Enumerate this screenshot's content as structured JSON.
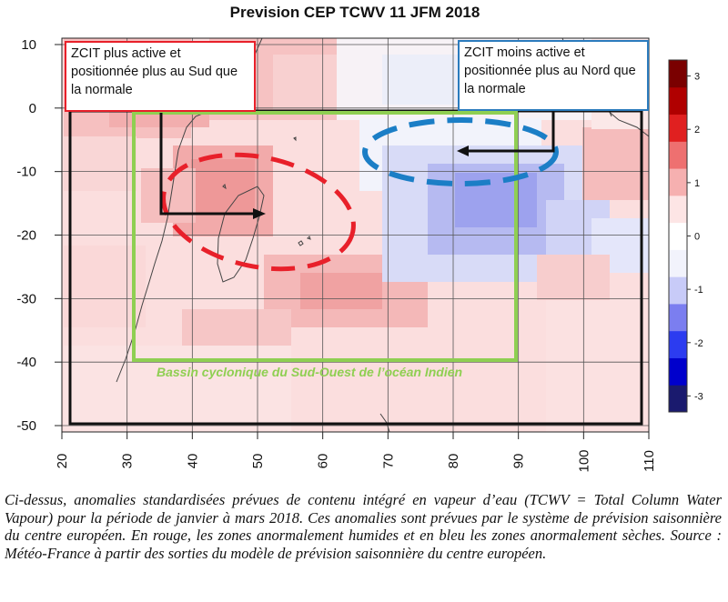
{
  "title": "Prevision CEP TCWV 11 JFM 2018",
  "axes": {
    "y_ticks": [
      "10",
      "0",
      "-10",
      "-20",
      "-30",
      "-40",
      "-50"
    ],
    "x_ticks": [
      "20",
      "30",
      "40",
      "50",
      "60",
      "70",
      "80",
      "90",
      "100",
      "110"
    ],
    "lat_range": [
      -51,
      11
    ],
    "lon_range": [
      20,
      110
    ]
  },
  "colorbar": {
    "ticks": [
      "3",
      "2",
      "1",
      "0",
      "-1",
      "-2",
      "-3"
    ],
    "range": [
      -3.3,
      3.3
    ],
    "colors": [
      "#1a1a6e",
      "#0000cc",
      "#2c3cf0",
      "#7b7ef0",
      "#c8cbf8",
      "#f2f3fc",
      "#ffffff",
      "#fde5e5",
      "#f6b0b0",
      "#ee7070",
      "#e02020",
      "#b00000",
      "#7a0000"
    ]
  },
  "annotations": {
    "south_note": "ZCIT plus active et positionnée plus au Sud que la normale",
    "north_note": "ZCIT moins active et positionnée plus au Nord que la normale",
    "basin_label": "Bassin cyclonique du Sud-Ouest de l’océan Indien"
  },
  "colors": {
    "south_accent": "#e8202a",
    "north_accent": "#2b7bbd",
    "basin_box": "#8fcf52"
  },
  "caption": "Ci-dessus, anomalies standardisées prévues de contenu intégré en vapeur d’eau (TCWV = Total Column Water Vapour) pour la période de janvier à mars 2018. Ces anomalies sont prévues par le système de prévision saisonnière du centre européen. En rouge, les zones anormalement humides et en bleu les zones anormalement sèches. Source : Météo-France à partir des sorties du modèle de prévision saisonnière du centre européen."
}
